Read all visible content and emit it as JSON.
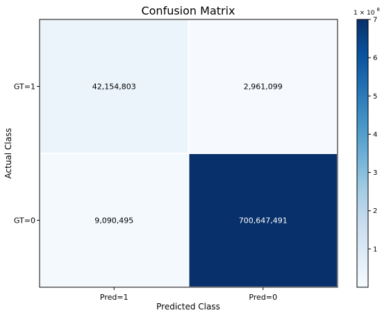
{
  "chart_data": {
    "type": "heatmap",
    "title": "Confusion Matrix",
    "xlabel": "Predicted Class",
    "ylabel": "Actual Class",
    "x_categories": [
      "Pred=1",
      "Pred=0"
    ],
    "y_categories": [
      "GT=1",
      "GT=0"
    ],
    "values": [
      [
        42154803,
        2961099
      ],
      [
        9090495,
        700647491
      ]
    ],
    "cell_labels": [
      [
        "42,154,803",
        "2,961,099"
      ],
      [
        "9,090,495",
        "700,647,491"
      ]
    ],
    "colormap": "Blues",
    "colorbar": {
      "multiplier_text": "1 × 10",
      "multiplier_exponent": "8",
      "ticks": [
        {
          "value": 1,
          "label": "1"
        },
        {
          "value": 2,
          "label": "2"
        },
        {
          "value": 3,
          "label": "3"
        },
        {
          "value": 4,
          "label": "4"
        },
        {
          "value": 5,
          "label": "5"
        },
        {
          "value": 6,
          "label": "6"
        },
        {
          "value": 7,
          "label": "7"
        }
      ],
      "range": [
        0.0,
        7.0
      ]
    },
    "grid": false
  }
}
